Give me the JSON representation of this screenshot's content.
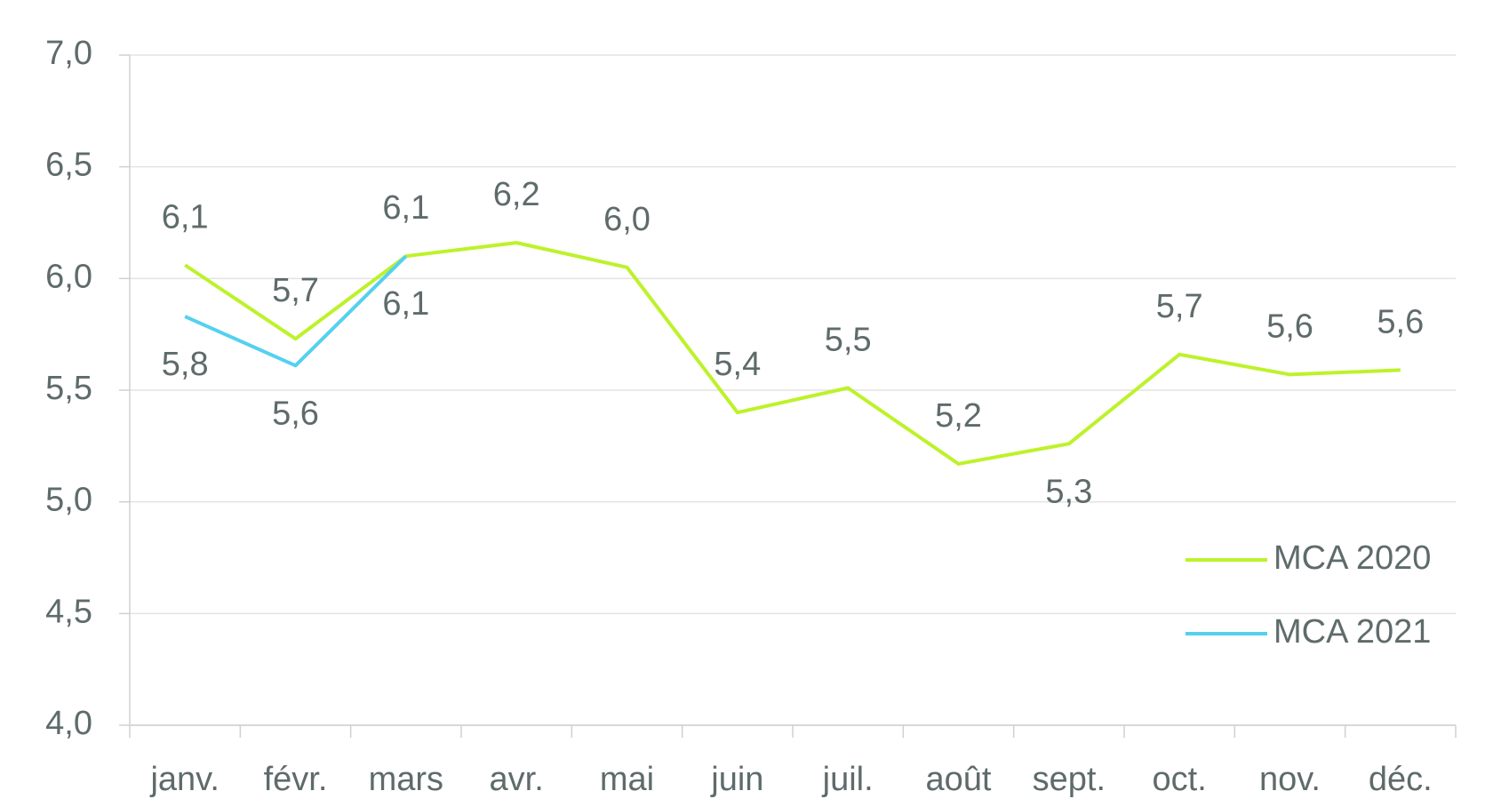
{
  "chart_data": {
    "type": "line",
    "categories": [
      "janv.",
      "févr.",
      "mars",
      "avr.",
      "mai",
      "juin",
      "juil.",
      "août",
      "sept.",
      "oct.",
      "nov.",
      "déc."
    ],
    "series": [
      {
        "name": "MCA 2020",
        "color": "#bdf22a",
        "values": [
          6.06,
          5.73,
          6.1,
          6.16,
          6.05,
          5.4,
          5.51,
          5.17,
          5.26,
          5.66,
          5.57,
          5.59
        ],
        "value_labels": [
          "6,1",
          "5,7",
          "6,1",
          "6,2",
          "6,0",
          "5,4",
          "5,5",
          "5,2",
          "5,3",
          "5,7",
          "5,6",
          "5,6"
        ]
      },
      {
        "name": "MCA 2021",
        "color": "#55d0f0",
        "values": [
          5.83,
          5.61,
          6.1,
          null,
          null,
          null,
          null,
          null,
          null,
          null,
          null,
          null
        ],
        "value_labels": [
          "5,8",
          "5,6",
          "6,1",
          null,
          null,
          null,
          null,
          null,
          null,
          null,
          null,
          null
        ]
      }
    ],
    "ylim": [
      4,
      7
    ],
    "yticks": [
      {
        "value": 4,
        "label": "4,0"
      },
      {
        "value": 4.5,
        "label": "4,5"
      },
      {
        "value": 5,
        "label": "5,0"
      },
      {
        "value": 5.5,
        "label": "5,5"
      },
      {
        "value": 6,
        "label": "6,0"
      },
      {
        "value": 6.5,
        "label": "6,5"
      },
      {
        "value": 7,
        "label": "7,0"
      }
    ],
    "grid": true,
    "legend": "right"
  }
}
